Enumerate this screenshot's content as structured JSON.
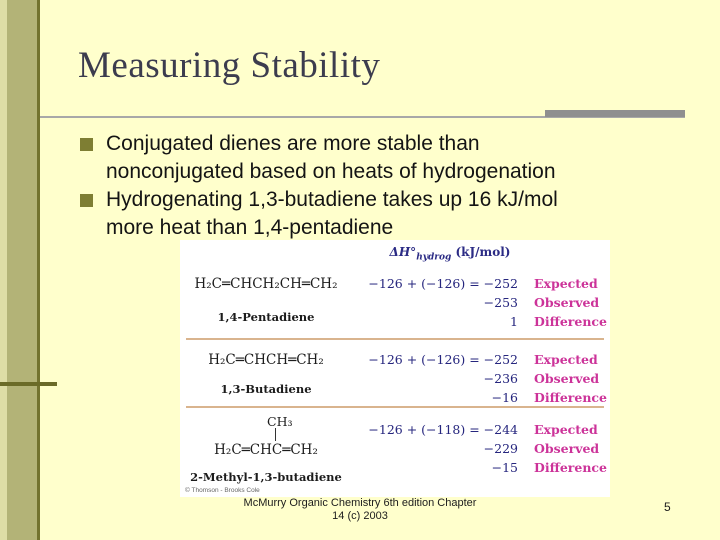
{
  "slide": {
    "title": "Measuring Stability",
    "page_number": "5",
    "footer": {
      "line1": "McMurry Organic Chemistry 6th edition Chapter",
      "line2": "14 (c) 2003"
    },
    "bullets": [
      {
        "lines": [
          "Conjugated dienes are more stable than",
          "nonconjugated based on heats of hydrogenation"
        ]
      },
      {
        "lines": [
          "Hydrogenating 1,3-butadiene takes up 16 kJ/mol",
          "more heat than 1,4-pentadiene"
        ]
      }
    ]
  },
  "figure": {
    "header": {
      "dh": "ΔH°",
      "sub": "hydrog",
      "units": " (kJ/mol)"
    },
    "credit": "© Thomson - Brooks Cole",
    "rows": [
      {
        "formula": "H₂C═CHCH₂CH═CH₂",
        "name": "1,4-Pentadiene",
        "values": [
          "−126 + (−126) = −252",
          "−253",
          "1"
        ],
        "labels": [
          "Expected",
          "Observed",
          "Difference"
        ]
      },
      {
        "formula": "H₂C═CHCH═CH₂",
        "name": "1,3-Butadiene",
        "values": [
          "−126 + (−126) = −252",
          "−236",
          "−16"
        ],
        "labels": [
          "Expected",
          "Observed",
          "Difference"
        ]
      },
      {
        "substituent": "CH₃",
        "formula": "H₂C═CHC═CH₂",
        "name": "2-Methyl-1,3-butadiene",
        "values": [
          "−126 + (−118) = −244",
          "−229",
          "−15"
        ],
        "labels": [
          "Expected",
          "Observed",
          "Difference"
        ]
      }
    ]
  },
  "colors": {
    "background": "#ffffcc",
    "sidebar": "#b3b377",
    "bullet_square": "#7e7e33",
    "value_text": "#26267e",
    "label_text": "#cc3399",
    "separator": "#d9b48e"
  }
}
